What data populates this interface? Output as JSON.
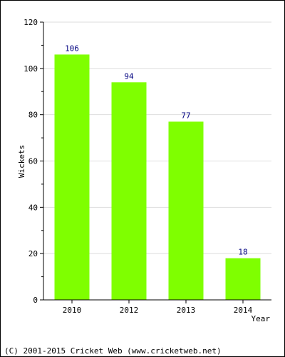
{
  "chart_data": {
    "type": "bar",
    "categories": [
      "2010",
      "2012",
      "2013",
      "2014"
    ],
    "values": [
      106,
      94,
      77,
      18
    ],
    "data_labels": [
      "106",
      "94",
      "77",
      "18"
    ],
    "ylim": [
      0,
      120
    ],
    "yticks": [
      0,
      20,
      40,
      60,
      80,
      100,
      120
    ],
    "ytick_labels": [
      "0",
      "20",
      "40",
      "60",
      "80",
      "100",
      "120"
    ],
    "xlabel": "Year",
    "ylabel": "Wickets",
    "title": "",
    "grid": true,
    "legend": "none",
    "colors": {
      "bar": "#7FFF00",
      "data_label": "#000080",
      "grid": "#dddddd",
      "axis": "#000000"
    }
  },
  "footer": {
    "text": "(C) 2001-2015 Cricket Web (www.cricketweb.net)"
  }
}
